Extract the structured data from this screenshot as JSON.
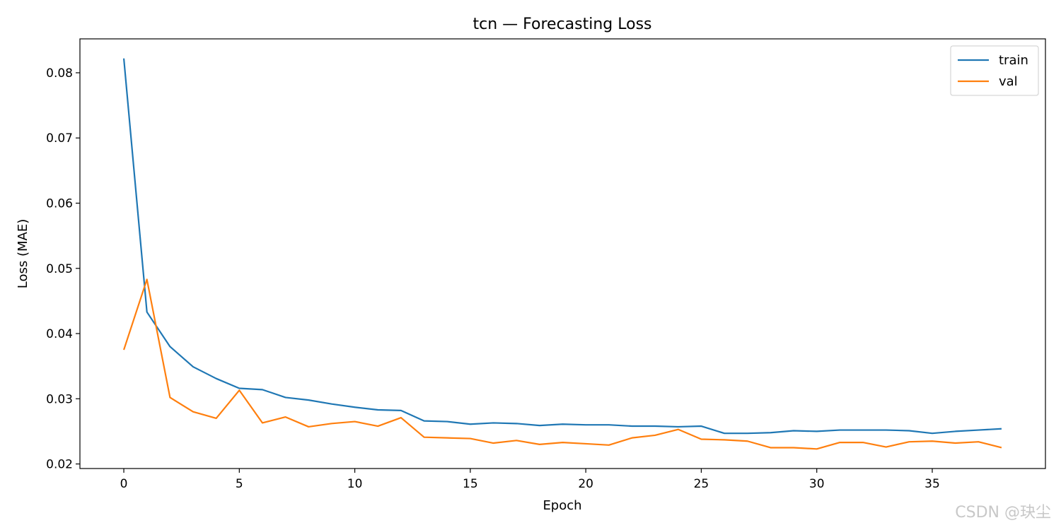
{
  "chart_data": {
    "type": "line",
    "title": "tcn — Forecasting Loss",
    "xlabel": "Epoch",
    "ylabel": "Loss (MAE)",
    "xlim": [
      -1.9,
      39.9
    ],
    "ylim": [
      0.0193,
      0.0852
    ],
    "xticks": [
      0,
      5,
      10,
      15,
      20,
      25,
      30,
      35
    ],
    "yticks": [
      0.02,
      0.03,
      0.04,
      0.05,
      0.06,
      0.07,
      0.08
    ],
    "ytick_labels": [
      "0.02",
      "0.03",
      "0.04",
      "0.05",
      "0.06",
      "0.07",
      "0.08"
    ],
    "grid": false,
    "legend_position": "top-right",
    "x": [
      0,
      1,
      2,
      3,
      4,
      5,
      6,
      7,
      8,
      9,
      10,
      11,
      12,
      13,
      14,
      15,
      16,
      17,
      18,
      19,
      20,
      21,
      22,
      23,
      24,
      25,
      26,
      27,
      28,
      29,
      30,
      31,
      32,
      33,
      34,
      35,
      36,
      37,
      38
    ],
    "series": [
      {
        "name": "train",
        "color": "#1f77b4",
        "values": [
          0.0822,
          0.0433,
          0.038,
          0.0349,
          0.0331,
          0.0316,
          0.0314,
          0.0302,
          0.0298,
          0.0292,
          0.0287,
          0.0283,
          0.0282,
          0.0266,
          0.0265,
          0.0261,
          0.0263,
          0.0262,
          0.0259,
          0.0261,
          0.026,
          0.026,
          0.0258,
          0.0258,
          0.0257,
          0.0258,
          0.0247,
          0.0247,
          0.0248,
          0.0251,
          0.025,
          0.0252,
          0.0252,
          0.0252,
          0.0251,
          0.0247,
          0.025,
          0.0252,
          0.0254
        ]
      },
      {
        "name": "val",
        "color": "#ff7f0e",
        "values": [
          0.0375,
          0.0483,
          0.0302,
          0.028,
          0.027,
          0.0313,
          0.0263,
          0.0272,
          0.0257,
          0.0262,
          0.0265,
          0.0258,
          0.0271,
          0.0241,
          0.024,
          0.0239,
          0.0232,
          0.0236,
          0.023,
          0.0233,
          0.0231,
          0.0229,
          0.024,
          0.0244,
          0.0253,
          0.0238,
          0.0237,
          0.0235,
          0.0225,
          0.0225,
          0.0223,
          0.0233,
          0.0233,
          0.0226,
          0.0234,
          0.0235,
          0.0232,
          0.0234,
          0.0225
        ]
      }
    ]
  },
  "watermark": "CSDN @玦尘"
}
